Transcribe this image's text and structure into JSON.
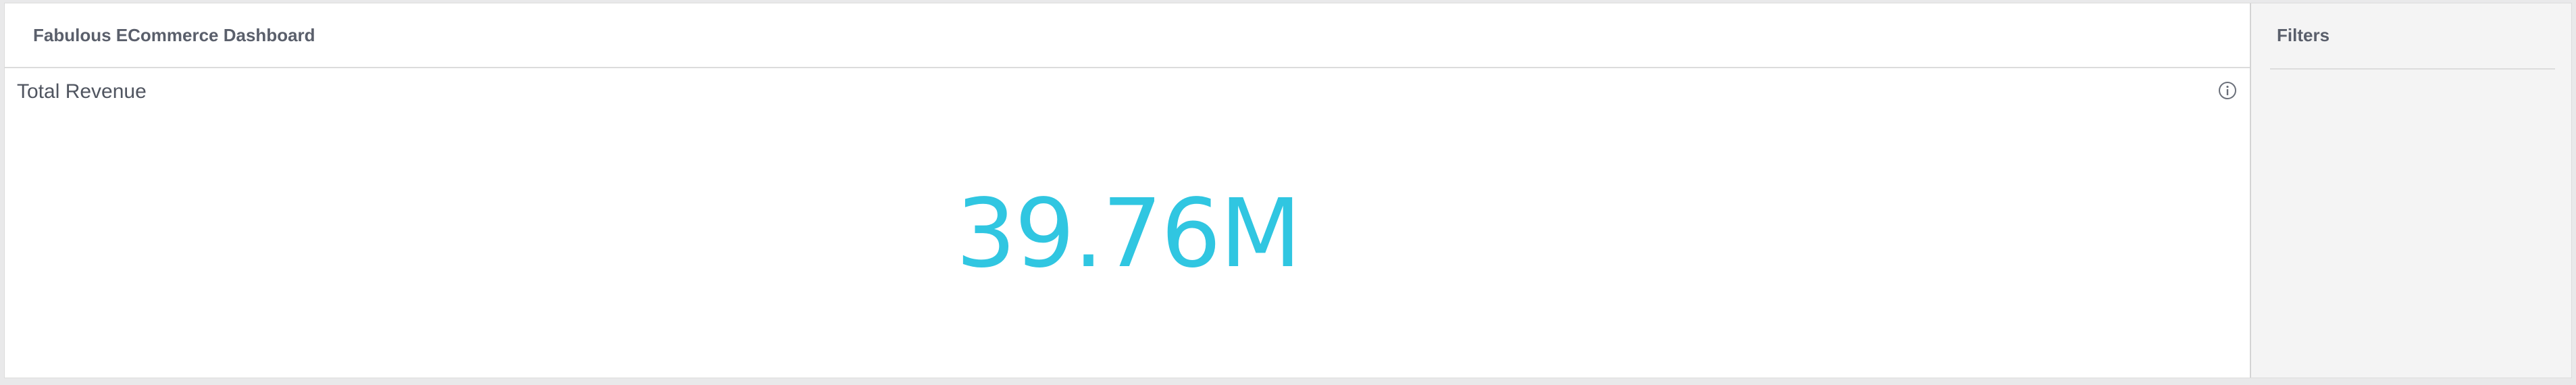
{
  "header": {
    "title": "Fabulous ECommerce Dashboard"
  },
  "tile": {
    "title": "Total Revenue",
    "value": "39.76M",
    "value_color": "#30c6e1",
    "info_icon": "info-icon"
  },
  "filters": {
    "title": "Filters"
  }
}
